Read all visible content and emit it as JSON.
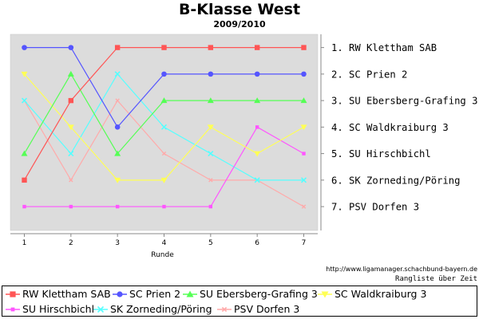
{
  "header": {
    "title": "B-Klasse West",
    "subtitle": "2009/2010"
  },
  "footer": {
    "source_url": "http://www.ligamanager.schachbund-bayern.de",
    "note": "Rangliste über Zeit"
  },
  "chart_data": {
    "type": "line",
    "title": "B-Klasse West",
    "subtitle": "2009/2010",
    "xlabel": "Runde",
    "ylabel": "",
    "x": [
      1,
      2,
      3,
      4,
      5,
      6,
      7
    ],
    "xlim": [
      0.7,
      7.3
    ],
    "ylim": [
      0.5,
      7.9
    ],
    "y_inverted": true,
    "grid": false,
    "background": "#dcdcdc",
    "legend_position": "bottom",
    "rank_labels": [
      "1.  RW Klettham SAB",
      "2.  SC Prien 2",
      "3.  SU Ebersberg-Grafing 3",
      "4.  SC Waldkraiburg 3",
      "5.  SU Hirschbichl",
      "6.  SK Zorneding/Pöring",
      "7.  PSV Dorfen 3"
    ],
    "series": [
      {
        "name": "RW Klettham SAB",
        "color": "#ff5555",
        "marker": "square",
        "values": [
          6,
          3,
          1,
          1,
          1,
          1,
          1
        ]
      },
      {
        "name": "SC Prien 2",
        "color": "#5555ff",
        "marker": "circle",
        "values": [
          1,
          1,
          4,
          2,
          2,
          2,
          2
        ]
      },
      {
        "name": "SU Ebersberg-Grafing 3",
        "color": "#55ff55",
        "marker": "triangle-up",
        "values": [
          5,
          2,
          5,
          3,
          3,
          3,
          3
        ]
      },
      {
        "name": "SC Waldkraiburg 3",
        "color": "#ffff55",
        "marker": "triangle-down",
        "values": [
          2,
          4,
          6,
          6,
          4,
          5,
          4
        ]
      },
      {
        "name": "SU Hirschbichl",
        "color": "#ff55ff",
        "marker": "square-small",
        "values": [
          7,
          7,
          7,
          7,
          7,
          4,
          5
        ]
      },
      {
        "name": "SK Zorneding/Pöring",
        "color": "#55ffff",
        "marker": "x",
        "values": [
          3,
          5,
          2,
          4,
          5,
          6,
          6
        ]
      },
      {
        "name": "PSV Dorfen 3",
        "color": "#ffaaaa",
        "marker": "x-small",
        "values": [
          3,
          6,
          3,
          5,
          6,
          6,
          7
        ]
      }
    ]
  }
}
